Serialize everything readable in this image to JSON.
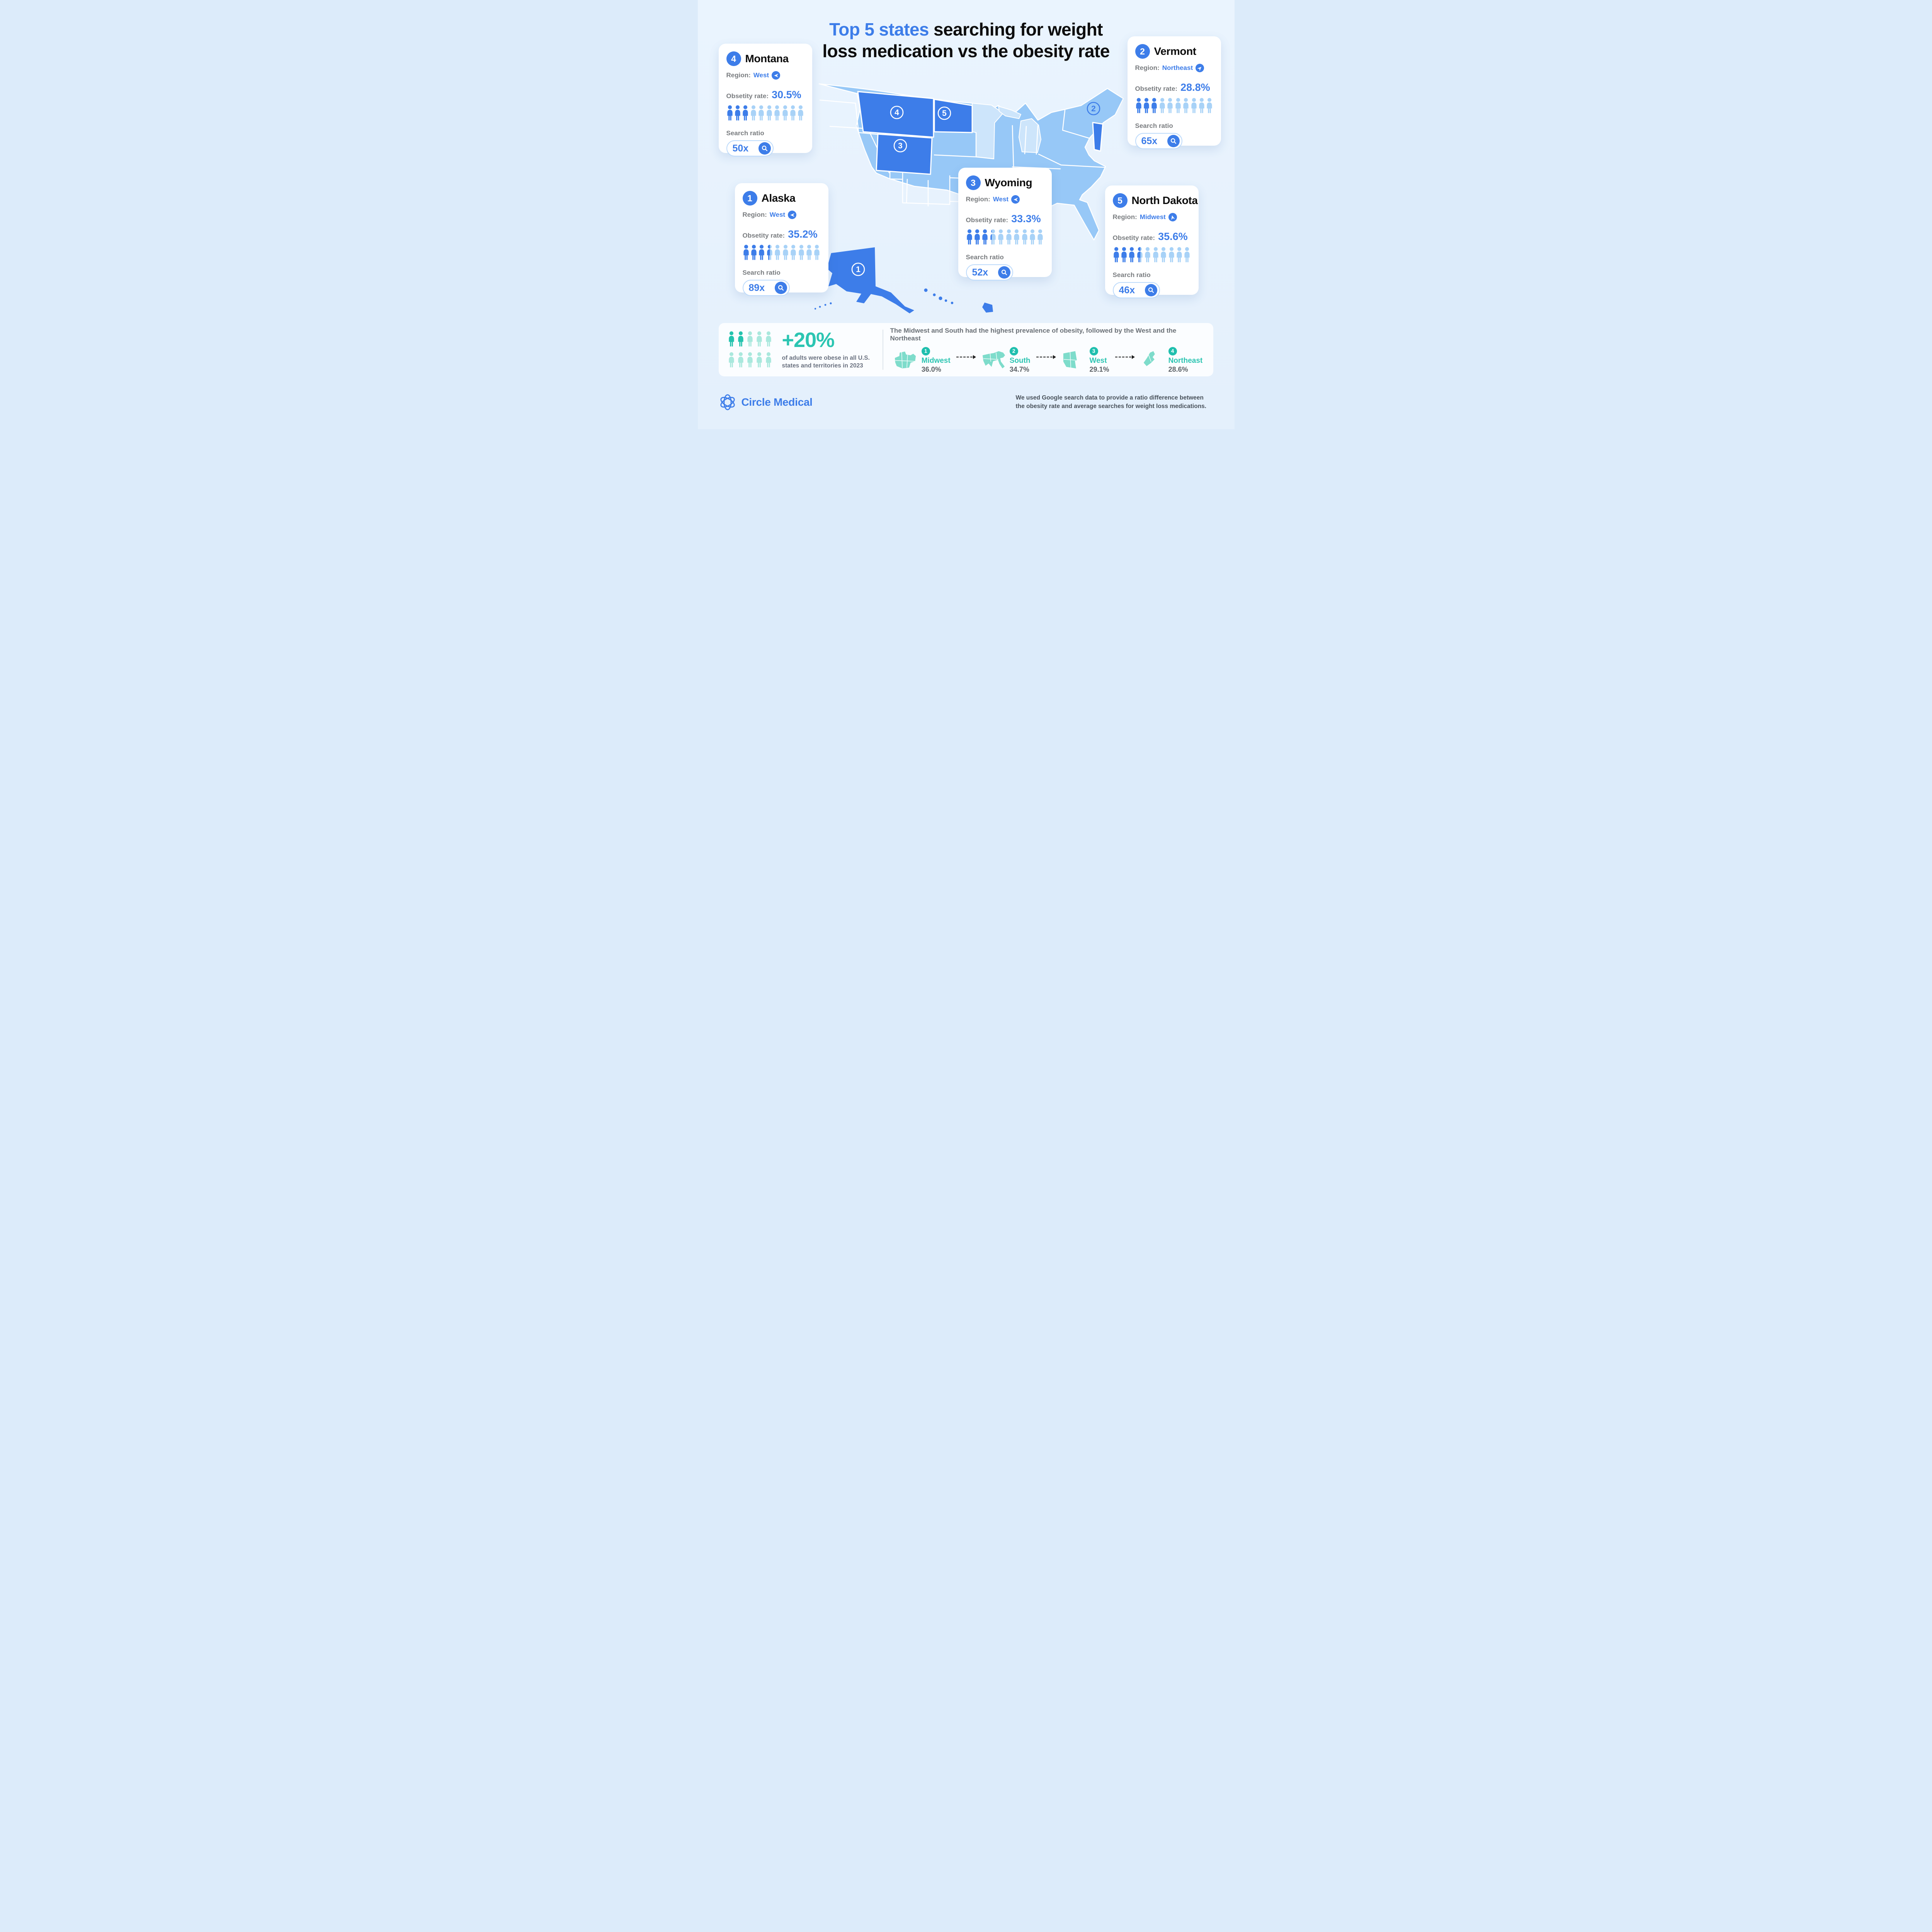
{
  "title": {
    "line1_highlight": "Top 5 states",
    "line1_rest": " searching for weight",
    "line2": "loss medication vs the obesity rate"
  },
  "labels": {
    "region": "Region:",
    "obesity_rate": "Obsetity rate:",
    "search_ratio": "Search ratio"
  },
  "cards": [
    {
      "rank": "1",
      "name": "Alaska",
      "region": "West",
      "direction": "west",
      "rate": "35.2%",
      "rate_value": 35.2,
      "ratio": "89x"
    },
    {
      "rank": "2",
      "name": "Vermont",
      "region": "Northeast",
      "direction": "northeast",
      "rate": "28.8%",
      "rate_value": 28.8,
      "ratio": "65x"
    },
    {
      "rank": "3",
      "name": "Wyoming",
      "region": "West",
      "direction": "west",
      "rate": "33.3%",
      "rate_value": 33.3,
      "ratio": "52x"
    },
    {
      "rank": "4",
      "name": "Montana",
      "region": "West",
      "direction": "west",
      "rate": "30.5%",
      "rate_value": 30.5,
      "ratio": "50x"
    },
    {
      "rank": "5",
      "name": "North Dakota",
      "region": "Midwest",
      "direction": "midwest",
      "rate": "35.6%",
      "rate_value": 35.6,
      "ratio": "46x"
    }
  ],
  "map": {
    "markers": {
      "alaska": "1",
      "vermont": "2",
      "wyoming": "3",
      "montana": "4",
      "north_dakota": "5"
    }
  },
  "summary": {
    "stat": "+20%",
    "description": "of adults were obese in all U.S. states and territories in 2023",
    "fill_pct": 20,
    "filled_icons": 2,
    "headline": "The Midwest and South had the highest prevalence of obesity, followed by the West and the Northeast",
    "regions": [
      {
        "rank": "1",
        "name": "Midwest",
        "value": "36.0%"
      },
      {
        "rank": "2",
        "name": "South",
        "value": "34.7%"
      },
      {
        "rank": "3",
        "name": "West",
        "value": "29.1%"
      },
      {
        "rank": "4",
        "name": "Northeast",
        "value": "28.6%"
      }
    ]
  },
  "footer": {
    "brand": "Circle Medical",
    "note": "We used Google search data to provide a ratio difference between the obesity rate and average searches for weight loss medications."
  },
  "colors": {
    "accent_blue": "#3d7de9",
    "light_person_blue": "#a8d2f7",
    "map_state_blue": "#97c8f7",
    "background_blue": "#e8f3fd",
    "teal": "#2cc5b2",
    "teal_light": "#a9e8dd",
    "region_map_teal": "#7edccb"
  },
  "chart_data": {
    "type": "table",
    "title": "Top 5 states searching for weight loss medication vs the obesity rate",
    "columns": [
      "rank",
      "state",
      "region",
      "obesity_rate_pct",
      "search_ratio_x"
    ],
    "rows": [
      [
        1,
        "Alaska",
        "West",
        35.2,
        89
      ],
      [
        2,
        "Vermont",
        "Northeast",
        28.8,
        65
      ],
      [
        3,
        "Wyoming",
        "West",
        33.3,
        52
      ],
      [
        4,
        "Montana",
        "West",
        30.5,
        50
      ],
      [
        5,
        "North Dakota",
        "Midwest",
        35.6,
        46
      ]
    ],
    "regional_obesity": {
      "type": "bar",
      "categories": [
        "Midwest",
        "South",
        "West",
        "Northeast"
      ],
      "values": [
        36.0,
        34.7,
        29.1,
        28.6
      ],
      "note": "The Midwest and South had the highest prevalence of obesity, followed by the West and the Northeast"
    },
    "national_stat": {
      "value_pct": 20,
      "text": "+20% of adults were obese in all U.S. states and territories in 2023"
    }
  }
}
